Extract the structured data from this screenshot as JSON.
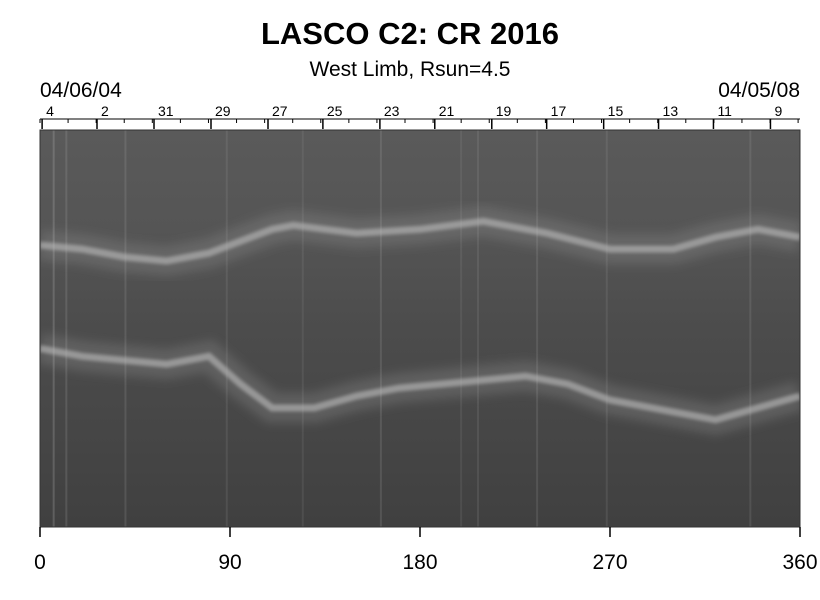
{
  "chart_data": {
    "type": "heatmap",
    "title": "LASCO C2: CR 2016",
    "subtitle": "West Limb, Rsun=4.5",
    "date_start": "04/06/04",
    "date_end": "04/05/08",
    "xlim": [
      0,
      360
    ],
    "x_ticks": [
      0,
      90,
      180,
      270,
      360
    ],
    "day_labels": [
      {
        "label": "4",
        "x": 1
      },
      {
        "label": "2",
        "x": 27
      },
      {
        "label": "31",
        "x": 54
      },
      {
        "label": "29",
        "x": 81
      },
      {
        "label": "27",
        "x": 108
      },
      {
        "label": "25",
        "x": 134
      },
      {
        "label": "23",
        "x": 161
      },
      {
        "label": "21",
        "x": 187
      },
      {
        "label": "19",
        "x": 214
      },
      {
        "label": "17",
        "x": 240
      },
      {
        "label": "15",
        "x": 267
      },
      {
        "label": "13",
        "x": 293
      },
      {
        "label": "11",
        "x": 319
      },
      {
        "label": "9",
        "x": 346
      }
    ],
    "colorscale": "grayscale",
    "background_color": "#4a4a4a",
    "streamers": [
      {
        "name": "northern",
        "points": [
          [
            0,
            0.29
          ],
          [
            20,
            0.3
          ],
          [
            40,
            0.32
          ],
          [
            60,
            0.33
          ],
          [
            80,
            0.31
          ],
          [
            100,
            0.27
          ],
          [
            110,
            0.25
          ],
          [
            120,
            0.24
          ],
          [
            135,
            0.25
          ],
          [
            150,
            0.26
          ],
          [
            180,
            0.25
          ],
          [
            210,
            0.23
          ],
          [
            240,
            0.26
          ],
          [
            270,
            0.3
          ],
          [
            300,
            0.3
          ],
          [
            320,
            0.27
          ],
          [
            340,
            0.25
          ],
          [
            360,
            0.27
          ]
        ]
      },
      {
        "name": "southern",
        "points": [
          [
            0,
            0.55
          ],
          [
            20,
            0.57
          ],
          [
            40,
            0.58
          ],
          [
            60,
            0.59
          ],
          [
            80,
            0.57
          ],
          [
            95,
            0.64
          ],
          [
            110,
            0.7
          ],
          [
            130,
            0.7
          ],
          [
            150,
            0.67
          ],
          [
            170,
            0.65
          ],
          [
            190,
            0.64
          ],
          [
            210,
            0.63
          ],
          [
            230,
            0.62
          ],
          [
            250,
            0.64
          ],
          [
            270,
            0.68
          ],
          [
            300,
            0.71
          ],
          [
            320,
            0.73
          ],
          [
            340,
            0.7
          ],
          [
            360,
            0.67
          ]
        ]
      }
    ]
  }
}
